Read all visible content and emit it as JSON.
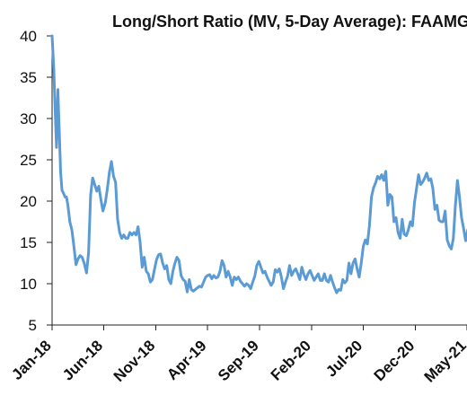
{
  "chart_data": {
    "type": "line",
    "title": "Long/Short Ratio (MV, 5-Day Average): FAAMG",
    "xlabel": "",
    "ylabel": "",
    "ylim": [
      5,
      40
    ],
    "yticks": [
      5,
      10,
      15,
      20,
      25,
      30,
      35,
      40
    ],
    "x_tick_labels": [
      "Jan-18",
      "Jun-18",
      "Nov-18",
      "Apr-19",
      "Sep-19",
      "Feb-20",
      "Jul-20",
      "Dec-20",
      "May-21"
    ],
    "grid": false,
    "legend": "none",
    "line_color": "#5b9bd5",
    "series": [
      {
        "x": [
          "2018-01-01",
          "2018-01-06",
          "2018-01-10",
          "2018-01-14",
          "2018-01-18",
          "2018-01-22",
          "2018-01-26",
          "2018-01-30",
          "2018-02-03",
          "2018-02-08",
          "2018-02-12",
          "2018-02-16",
          "2018-02-22",
          "2018-02-28",
          "2018-03-06",
          "2018-03-12",
          "2018-03-18",
          "2018-03-24",
          "2018-03-30",
          "2018-04-05",
          "2018-04-12",
          "2018-04-18",
          "2018-04-24",
          "2018-04-30",
          "2018-05-06",
          "2018-05-12",
          "2018-05-18",
          "2018-05-24",
          "2018-05-30",
          "2018-06-06",
          "2018-06-12",
          "2018-06-18",
          "2018-06-24",
          "2018-06-30",
          "2018-07-06",
          "2018-07-12",
          "2018-07-18",
          "2018-07-24",
          "2018-07-30",
          "2018-08-05",
          "2018-08-11",
          "2018-08-17",
          "2018-08-23",
          "2018-08-29",
          "2018-09-04",
          "2018-09-10",
          "2018-09-16",
          "2018-09-22",
          "2018-09-28",
          "2018-10-04",
          "2018-10-10",
          "2018-10-16",
          "2018-10-22",
          "2018-10-28",
          "2018-11-03",
          "2018-11-09",
          "2018-11-15",
          "2018-11-21",
          "2018-11-27",
          "2018-12-03",
          "2018-12-09",
          "2018-12-15",
          "2018-12-21",
          "2018-12-27",
          "2019-01-02",
          "2019-01-08",
          "2019-01-14",
          "2019-01-20",
          "2019-01-26",
          "2019-02-01",
          "2019-02-07",
          "2019-02-13",
          "2019-02-19",
          "2019-02-25",
          "2019-03-03",
          "2019-03-09",
          "2019-03-15",
          "2019-03-21",
          "2019-03-27",
          "2019-04-02",
          "2019-04-08",
          "2019-04-14",
          "2019-04-20",
          "2019-04-26",
          "2019-05-02",
          "2019-05-08",
          "2019-05-14",
          "2019-05-20",
          "2019-05-26",
          "2019-06-01",
          "2019-06-07",
          "2019-06-13",
          "2019-06-19",
          "2019-06-25",
          "2019-07-01",
          "2019-07-07",
          "2019-07-13",
          "2019-07-19",
          "2019-07-25",
          "2019-07-31",
          "2019-08-06",
          "2019-08-12",
          "2019-08-18",
          "2019-08-24",
          "2019-08-30",
          "2019-09-05",
          "2019-09-11",
          "2019-09-17",
          "2019-09-23",
          "2019-09-29",
          "2019-10-05",
          "2019-10-11",
          "2019-10-17",
          "2019-10-23",
          "2019-10-29",
          "2019-11-04",
          "2019-11-10",
          "2019-11-16",
          "2019-11-22",
          "2019-11-28",
          "2019-12-04",
          "2019-12-10",
          "2019-12-16",
          "2019-12-22",
          "2019-12-28",
          "2020-01-03",
          "2020-01-09",
          "2020-01-15",
          "2020-01-21",
          "2020-01-27",
          "2020-02-02",
          "2020-02-08",
          "2020-02-14",
          "2020-02-20",
          "2020-02-26",
          "2020-03-03",
          "2020-03-09",
          "2020-03-15",
          "2020-03-21",
          "2020-03-27",
          "2020-04-02",
          "2020-04-08",
          "2020-04-14",
          "2020-04-20",
          "2020-04-26",
          "2020-05-02",
          "2020-05-08",
          "2020-05-14",
          "2020-05-20",
          "2020-05-26",
          "2020-06-01",
          "2020-06-07",
          "2020-06-13",
          "2020-06-19",
          "2020-06-25",
          "2020-07-01",
          "2020-07-07",
          "2020-07-13",
          "2020-07-19",
          "2020-07-25",
          "2020-07-31",
          "2020-08-06",
          "2020-08-12",
          "2020-08-18",
          "2020-08-24",
          "2020-08-30",
          "2020-09-05",
          "2020-09-11",
          "2020-09-17",
          "2020-09-23",
          "2020-09-29",
          "2020-10-05",
          "2020-10-11",
          "2020-10-17",
          "2020-10-23",
          "2020-10-29",
          "2020-11-04",
          "2020-11-10",
          "2020-11-16",
          "2020-11-22",
          "2020-11-28",
          "2020-12-04",
          "2020-12-10",
          "2020-12-16",
          "2020-12-22",
          "2020-12-28",
          "2021-01-03",
          "2021-01-09",
          "2021-01-15",
          "2021-01-21",
          "2021-01-27",
          "2021-02-02",
          "2021-02-08",
          "2021-02-14",
          "2021-02-20",
          "2021-02-26",
          "2021-03-04",
          "2021-03-10",
          "2021-03-16",
          "2021-03-22",
          "2021-03-28",
          "2021-04-03",
          "2021-04-09",
          "2021-04-15",
          "2021-04-21",
          "2021-04-27",
          "2021-05-03"
        ],
        "values": [
          40.0,
          36.0,
          31.0,
          26.5,
          33.5,
          28.5,
          23.5,
          21.3,
          21.0,
          20.5,
          20.5,
          19.6,
          17.5,
          16.5,
          14.5,
          12.3,
          13.0,
          13.4,
          13.2,
          12.5,
          11.3,
          13.8,
          20.8,
          22.8,
          22.0,
          21.2,
          21.8,
          20.2,
          18.8,
          19.8,
          21.5,
          23.5,
          24.8,
          23.0,
          22.3,
          17.8,
          16.2,
          15.5,
          15.9,
          15.5,
          15.5,
          16.2,
          15.9,
          16.2,
          15.9,
          16.9,
          15.0,
          12.0,
          13.2,
          11.5,
          11.2,
          10.2,
          10.5,
          11.7,
          12.9,
          13.5,
          13.6,
          12.5,
          11.8,
          12.2,
          10.5,
          10.0,
          11.5,
          12.5,
          13.2,
          12.8,
          11.0,
          10.5,
          10.3,
          9.0,
          10.5,
          9.3,
          9.1,
          9.3,
          9.5,
          9.7,
          9.6,
          10.2,
          10.8,
          11.0,
          11.1,
          10.6,
          11.0,
          10.7,
          10.8,
          11.5,
          12.8,
          12.2,
          10.8,
          11.5,
          10.8,
          9.8,
          10.8,
          10.5,
          10.8,
          10.3,
          10.0,
          9.7,
          10.0,
          9.8,
          9.4,
          10.2,
          10.9,
          12.2,
          12.7,
          12.0,
          11.3,
          11.5,
          10.8,
          10.3,
          9.8,
          10.2,
          11.7,
          11.4,
          11.8,
          10.8,
          9.4,
          10.2,
          10.9,
          12.2,
          11.0,
          11.5,
          11.8,
          11.2,
          10.5,
          12.0,
          11.1,
          10.5,
          11.2,
          11.6,
          11.0,
          10.4,
          10.8,
          11.2,
          10.4,
          10.4,
          11.2,
          10.4,
          10.2,
          11.0,
          10.2,
          9.5,
          8.9,
          9.3,
          9.2,
          10.5,
          10.1,
          10.4,
          12.5,
          11.2,
          12.5,
          13.0,
          11.8,
          10.8,
          12.5,
          14.5,
          15.3,
          14.8,
          17.0,
          20.5,
          21.6,
          22.2,
          23.0,
          22.7,
          23.2,
          22.5,
          23.6,
          19.5,
          20.8,
          20.5,
          17.5,
          18.0,
          16.2,
          15.5,
          17.8,
          16.0,
          15.8,
          16.5,
          17.5,
          17.0,
          19.8,
          21.5,
          23.2,
          22.0,
          22.3,
          22.8,
          23.4,
          22.5,
          22.7,
          21.5,
          19.0,
          19.5,
          17.7,
          17.5,
          17.5,
          18.8,
          15.3,
          14.6,
          14.2,
          15.5,
          19.5,
          22.5,
          20.5,
          18.0,
          16.7,
          15.2,
          16.5
        ]
      }
    ]
  }
}
